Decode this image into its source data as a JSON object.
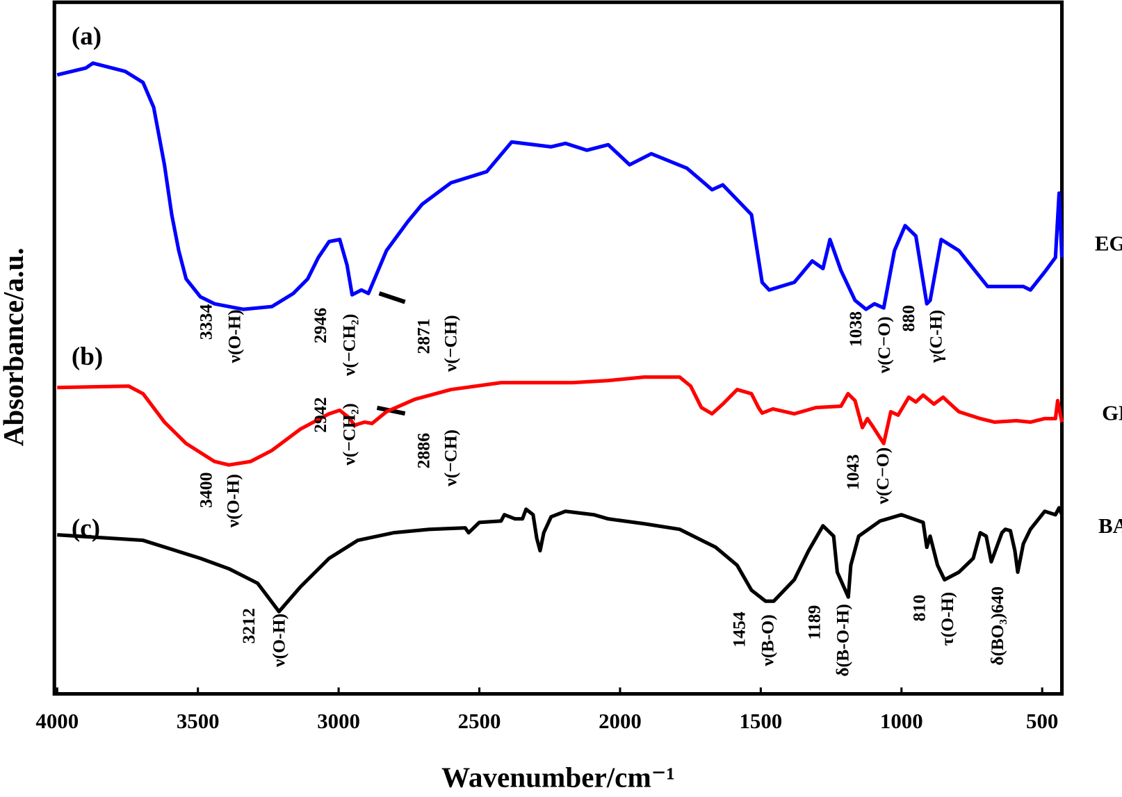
{
  "chart_data": {
    "type": "line",
    "x_label": "Wavenumber/cm⁻¹",
    "y_label": "Absorbance/a.u.",
    "xlim": [
      4010,
      430
    ],
    "xticks": [
      4000,
      3500,
      3000,
      2500,
      2000,
      1500,
      1000,
      500
    ],
    "ylim": [
      0,
      100
    ],
    "series": [
      {
        "name": "EG",
        "panel": "(a)",
        "color": "#0000ff",
        "x": [
          4000,
          3898,
          3873,
          3758,
          3695,
          3657,
          3619,
          3593,
          3568,
          3542,
          3491,
          3441,
          3339,
          3237,
          3161,
          3110,
          3072,
          3034,
          2996,
          2970,
          2952,
          2919,
          2894,
          2830,
          2754,
          2703,
          2601,
          2474,
          2385,
          2245,
          2194,
          2118,
          2042,
          1966,
          1889,
          1762,
          1673,
          1635,
          1533,
          1495,
          1470,
          1381,
          1317,
          1279,
          1254,
          1215,
          1165,
          1126,
          1096,
          1063,
          1025,
          987,
          949,
          910,
          898,
          859,
          796,
          694,
          567,
          542,
          491,
          453,
          440,
          430
        ],
        "values": [
          89.5,
          90.5,
          91.2,
          90.0,
          88.4,
          84.8,
          76.5,
          69.3,
          64.1,
          60.0,
          57.4,
          56.4,
          55.6,
          56.0,
          57.9,
          60.0,
          63.1,
          65.4,
          65.7,
          62.0,
          57.7,
          58.4,
          57.9,
          64.1,
          68.3,
          70.8,
          73.9,
          75.5,
          79.8,
          79.1,
          79.6,
          78.6,
          79.4,
          76.5,
          78.1,
          76.0,
          72.9,
          73.6,
          69.3,
          59.5,
          58.4,
          59.5,
          62.6,
          61.5,
          65.7,
          61.2,
          56.9,
          55.6,
          56.4,
          55.8,
          64.1,
          67.7,
          66.2,
          56.4,
          56.9,
          65.7,
          64.1,
          58.9,
          58.9,
          58.4,
          61.0,
          63.1,
          72.4,
          63.1
        ],
        "annotations": [
          "3334",
          "ν(O-H)",
          "2946",
          "ν(−CH₂)",
          "2871",
          "ν(−CH)",
          "1038",
          "ν(C−O)",
          "880",
          "γ(C-H)"
        ]
      },
      {
        "name": "GL",
        "panel": "(b)",
        "color": "#ff0000",
        "x": [
          4000,
          3746,
          3695,
          3619,
          3542,
          3441,
          3390,
          3313,
          3237,
          3135,
          3034,
          2996,
          2959,
          2945,
          2932,
          2907,
          2881,
          2830,
          2729,
          2601,
          2423,
          2169,
          2042,
          1915,
          1788,
          1749,
          1711,
          1673,
          1635,
          1584,
          1533,
          1508,
          1495,
          1457,
          1381,
          1304,
          1215,
          1190,
          1165,
          1139,
          1121,
          1101,
          1063,
          1038,
          1012,
          974,
          949,
          923,
          885,
          852,
          834,
          796,
          720,
          669,
          592,
          542,
          491,
          453,
          445,
          430
        ],
        "values": [
          44.3,
          44.5,
          43.4,
          39.3,
          36.2,
          33.6,
          33.1,
          33.6,
          35.2,
          38.3,
          40.5,
          41.0,
          39.8,
          38.8,
          39.0,
          39.3,
          39.1,
          40.8,
          42.6,
          44.0,
          45.0,
          45.0,
          45.3,
          45.8,
          45.8,
          44.5,
          41.4,
          40.5,
          41.9,
          44.0,
          43.4,
          41.4,
          40.6,
          41.2,
          40.5,
          41.4,
          41.6,
          43.4,
          42.4,
          38.5,
          39.8,
          38.6,
          36.2,
          40.8,
          40.3,
          42.9,
          42.2,
          43.2,
          41.9,
          42.9,
          42.2,
          40.8,
          39.8,
          39.3,
          39.5,
          39.3,
          39.8,
          39.8,
          42.4,
          39.3
        ],
        "annotations": [
          "3400",
          "ν(O-H)",
          "2942",
          "ν(−CH₂)",
          "2886",
          "ν(−CH)",
          "1043",
          "ν(C−O)"
        ]
      },
      {
        "name": "BA",
        "panel": "(c)",
        "color": "#000000",
        "x": [
          4000,
          3695,
          3491,
          3390,
          3288,
          3212,
          3135,
          3034,
          2932,
          2805,
          2678,
          2550,
          2538,
          2500,
          2423,
          2411,
          2373,
          2347,
          2334,
          2309,
          2296,
          2284,
          2271,
          2245,
          2194,
          2093,
          2042,
          1915,
          1788,
          1660,
          1584,
          1533,
          1483,
          1454,
          1381,
          1330,
          1279,
          1241,
          1228,
          1189,
          1180,
          1152,
          1076,
          1000,
          923,
          910,
          898,
          872,
          847,
          796,
          745,
          720,
          699,
          681,
          643,
          631,
          613,
          597,
          587,
          567,
          542,
          491,
          453,
          440,
          430
        ],
        "values": [
          23.0,
          22.2,
          19.6,
          18.1,
          16.0,
          11.9,
          15.5,
          19.6,
          22.2,
          23.3,
          23.8,
          24.0,
          23.3,
          24.8,
          25.0,
          25.9,
          25.3,
          25.3,
          26.7,
          25.9,
          22.5,
          20.7,
          23.3,
          25.6,
          26.4,
          25.9,
          25.3,
          24.6,
          23.8,
          21.2,
          18.6,
          15.0,
          13.4,
          13.4,
          16.5,
          20.7,
          24.3,
          22.8,
          17.6,
          14.0,
          18.6,
          22.8,
          25.0,
          25.9,
          24.8,
          21.2,
          22.8,
          18.6,
          16.5,
          17.6,
          19.6,
          23.3,
          22.8,
          19.1,
          23.3,
          23.8,
          23.6,
          20.7,
          17.6,
          21.7,
          23.8,
          26.4,
          25.9,
          26.9,
          25.9
        ],
        "annotations": [
          "3212",
          "ν(O-H)",
          "1454",
          "ν(B-O)",
          "1189",
          "δ(B-O-H)",
          "810",
          "τ(O-H)",
          "δ(BO₃)640"
        ]
      }
    ]
  }
}
